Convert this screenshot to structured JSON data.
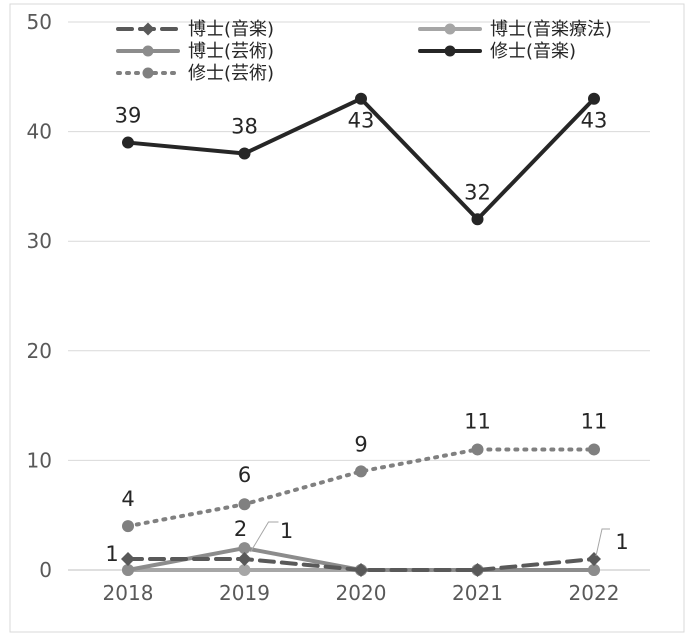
{
  "chart_data": {
    "type": "line",
    "categories": [
      "2018",
      "2019",
      "2020",
      "2021",
      "2022"
    ],
    "ylim": [
      0,
      50
    ],
    "yticks": [
      0,
      10,
      20,
      30,
      40,
      50
    ],
    "grid": true,
    "legend_position": "top",
    "series": [
      {
        "name": "博士(音楽)",
        "values": [
          1,
          1,
          0,
          0,
          1
        ],
        "color": "#595959",
        "style": "dashed",
        "labels": [
          "1",
          "",
          "",
          "",
          "1"
        ]
      },
      {
        "name": "博士(音楽療法)",
        "values": [
          0,
          0,
          0,
          0,
          0
        ],
        "color": "#a6a6a6",
        "style": "solid",
        "labels": [
          "",
          "",
          "",
          "",
          ""
        ]
      },
      {
        "name": "博士(芸術)",
        "values": [
          0,
          2,
          0,
          0,
          0
        ],
        "color": "#8c8c8c",
        "style": "solid",
        "labels": [
          "",
          "2",
          "",
          "",
          ""
        ]
      },
      {
        "name": "修士(音楽)",
        "values": [
          39,
          38,
          43,
          32,
          43
        ],
        "color": "#262626",
        "style": "solid",
        "labels": [
          "39",
          "38",
          "43",
          "32",
          "43"
        ]
      },
      {
        "name": "修士(芸術)",
        "values": [
          4,
          6,
          9,
          11,
          11
        ],
        "color": "#808080",
        "style": "dotted",
        "labels": [
          "4",
          "6",
          "9",
          "11",
          "11"
        ]
      }
    ],
    "callouts": [
      {
        "text": "1",
        "category": "2019"
      }
    ]
  }
}
